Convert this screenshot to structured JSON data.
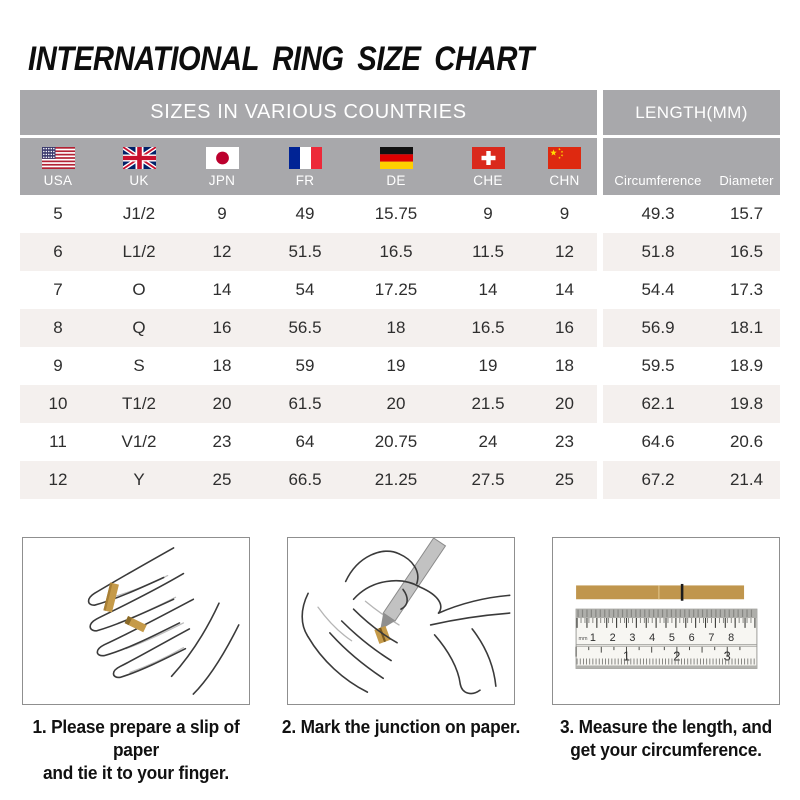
{
  "title": "INTERNATIONAL RING SIZE CHART",
  "table": {
    "header_left": "SIZES IN VARIOUS COUNTRIES",
    "header_right": "LENGTH(MM)",
    "columns": [
      {
        "code": "USA",
        "icon": "usa-flag-icon"
      },
      {
        "code": "UK",
        "icon": "uk-flag-icon"
      },
      {
        "code": "JPN",
        "icon": "japan-flag-icon"
      },
      {
        "code": "FR",
        "icon": "france-flag-icon"
      },
      {
        "code": "DE",
        "icon": "germany-flag-icon"
      },
      {
        "code": "CHE",
        "icon": "switzerland-flag-icon"
      },
      {
        "code": "CHN",
        "icon": "china-flag-icon"
      }
    ],
    "length_columns": [
      "Circumference",
      "Diameter"
    ],
    "rows": [
      [
        "5",
        "J1/2",
        "9",
        "49",
        "15.75",
        "9",
        "9",
        "49.3",
        "15.7"
      ],
      [
        "6",
        "L1/2",
        "12",
        "51.5",
        "16.5",
        "11.5",
        "12",
        "51.8",
        "16.5"
      ],
      [
        "7",
        "O",
        "14",
        "54",
        "17.25",
        "14",
        "14",
        "54.4",
        "17.3"
      ],
      [
        "8",
        "Q",
        "16",
        "56.5",
        "18",
        "16.5",
        "16",
        "56.9",
        "18.1"
      ],
      [
        "9",
        "S",
        "18",
        "59",
        "19",
        "19",
        "18",
        "59.5",
        "18.9"
      ],
      [
        "10",
        "T1/2",
        "20",
        "61.5",
        "20",
        "21.5",
        "20",
        "62.1",
        "19.8"
      ],
      [
        "11",
        "V1/2",
        "23",
        "64",
        "20.75",
        "24",
        "23",
        "64.6",
        "20.6"
      ],
      [
        "12",
        "Y",
        "25",
        "66.5",
        "21.25",
        "27.5",
        "25",
        "67.2",
        "21.4"
      ]
    ]
  },
  "instructions": [
    {
      "illustration": "hand-with-paper-slip",
      "step_lines": [
        "1. Please prepare a slip of paper",
        "and tie it to your finger."
      ]
    },
    {
      "illustration": "mark-junction",
      "step_lines": [
        "2. Mark the junction on paper.",
        ""
      ]
    },
    {
      "illustration": "ruler-measurement",
      "step_lines": [
        "3. Measure the length, and",
        "get your circumference."
      ],
      "ruler": {
        "unit_label": "mm",
        "cm_labels": [
          "1",
          "2",
          "3",
          "4",
          "5",
          "6",
          "7",
          "8"
        ],
        "inch_labels": [
          "1",
          "2",
          "3"
        ]
      }
    }
  ],
  "colors": {
    "header_gray": "#a8a8ab",
    "row_shade": "#f4f0ee",
    "paper_tan": "#c0964d",
    "flag_red": "#d52b1e"
  }
}
